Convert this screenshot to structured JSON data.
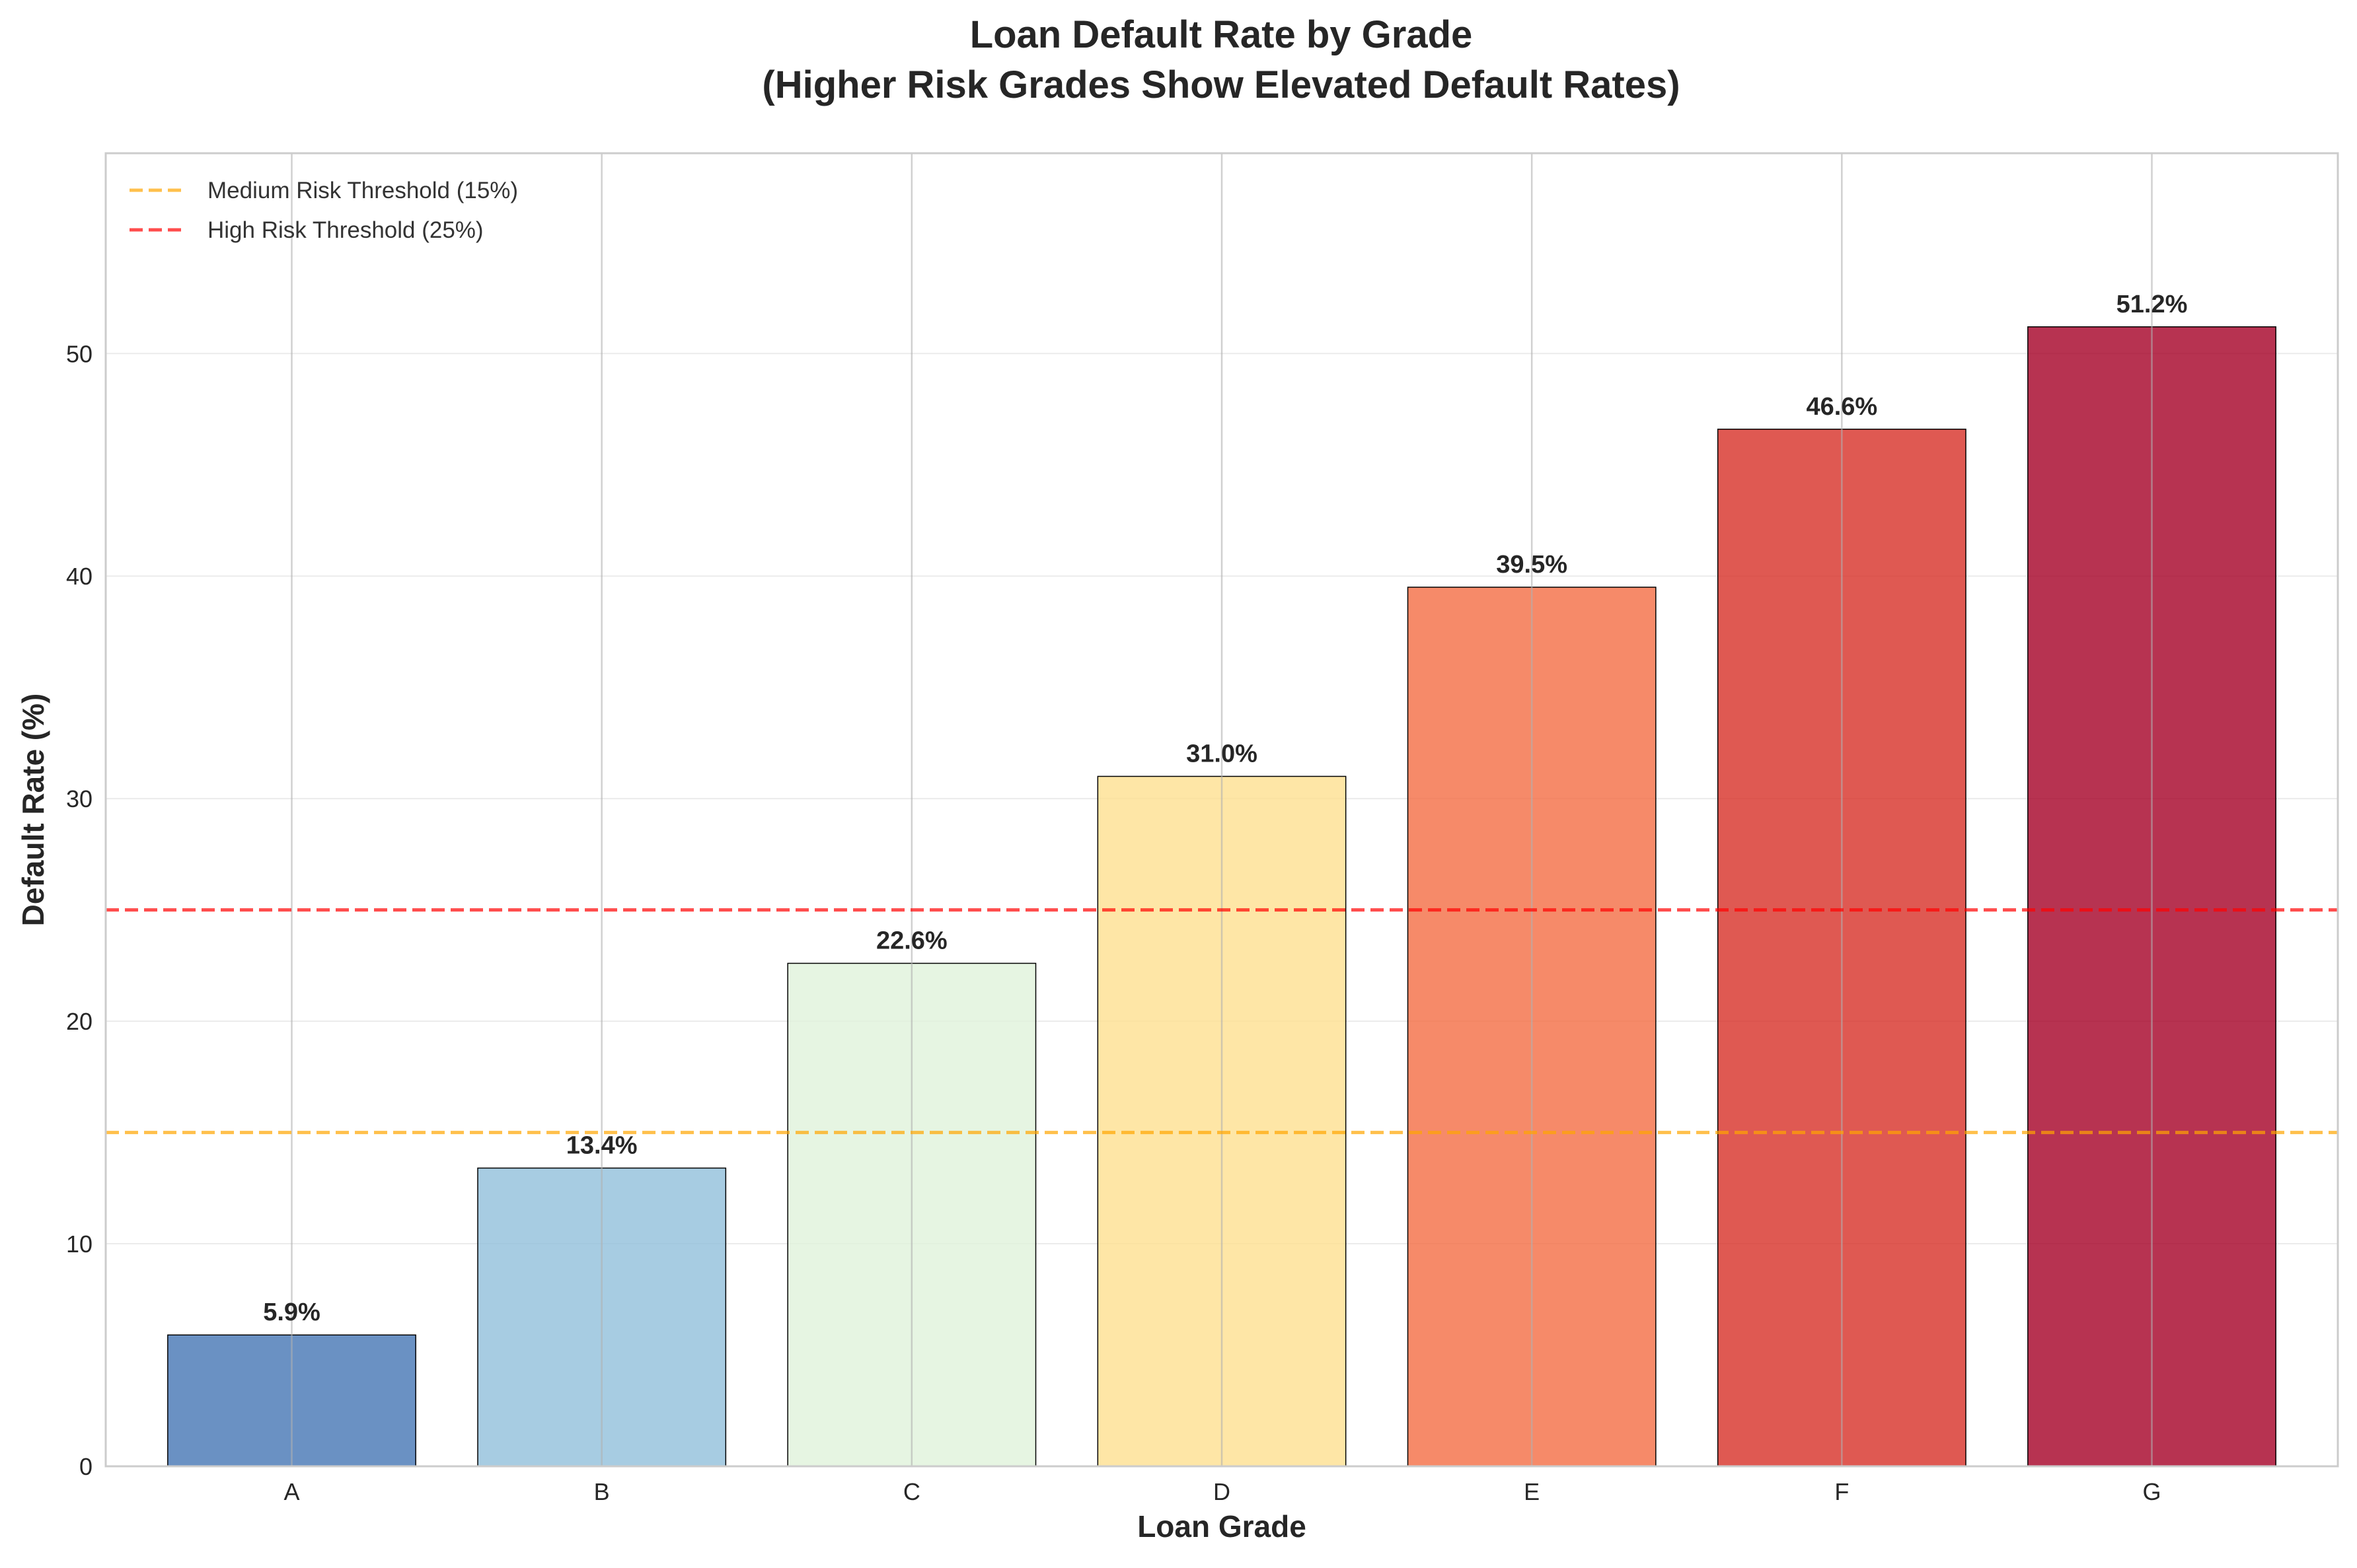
{
  "chart_data": {
    "type": "bar",
    "title_line1": "Loan Default Rate by Grade",
    "title_line2": "(Higher Risk Grades Show Elevated Default Rates)",
    "xlabel": "Loan Grade",
    "ylabel": "Default Rate (%)",
    "categories": [
      "A",
      "B",
      "C",
      "D",
      "E",
      "F",
      "G"
    ],
    "values": [
      5.9,
      13.4,
      22.6,
      31.0,
      39.5,
      46.6,
      51.2
    ],
    "data_labels": [
      "5.9%",
      "13.4%",
      "22.6%",
      "31.0%",
      "39.5%",
      "46.6%",
      "51.2%"
    ],
    "bar_colors": [
      "#4575b4",
      "#91bfdb",
      "#e0f3db",
      "#fee090",
      "#f46d43",
      "#d73027",
      "#a50026"
    ],
    "ylim": [
      0,
      59
    ],
    "yticks": [
      0,
      10,
      20,
      30,
      40,
      50
    ],
    "grid": true,
    "legend_position": "top-left",
    "thresholds": [
      {
        "name": "Medium Risk Threshold (15%)",
        "value": 15,
        "color": "#ffa500"
      },
      {
        "name": "High Risk Threshold (25%)",
        "value": 25,
        "color": "#ff0000"
      }
    ]
  }
}
